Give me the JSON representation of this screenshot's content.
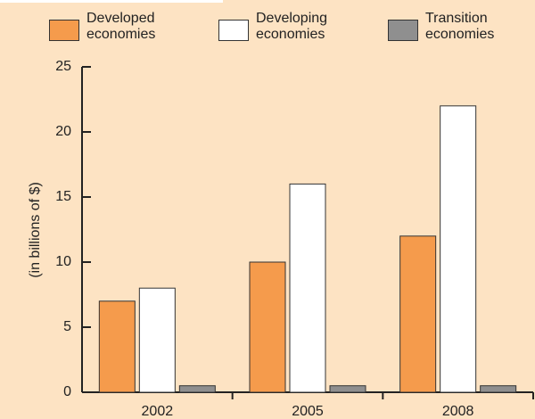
{
  "chart_data": {
    "type": "bar",
    "y_label": "(in billions of $)",
    "categories": [
      "2002",
      "2005",
      "2008"
    ],
    "series": [
      {
        "name": "Developed economies",
        "color": "#f59b4c",
        "values": [
          7,
          10,
          12
        ]
      },
      {
        "name": "Developing economies",
        "color": "#ffffff",
        "values": [
          8,
          16,
          22
        ]
      },
      {
        "name": "Transition economies",
        "color": "#8f8f8f",
        "values": [
          0.5,
          0.5,
          0.5
        ]
      }
    ],
    "ylim": [
      0,
      25
    ],
    "yticks": [
      0,
      5,
      10,
      15,
      20,
      25
    ],
    "grid": false
  }
}
